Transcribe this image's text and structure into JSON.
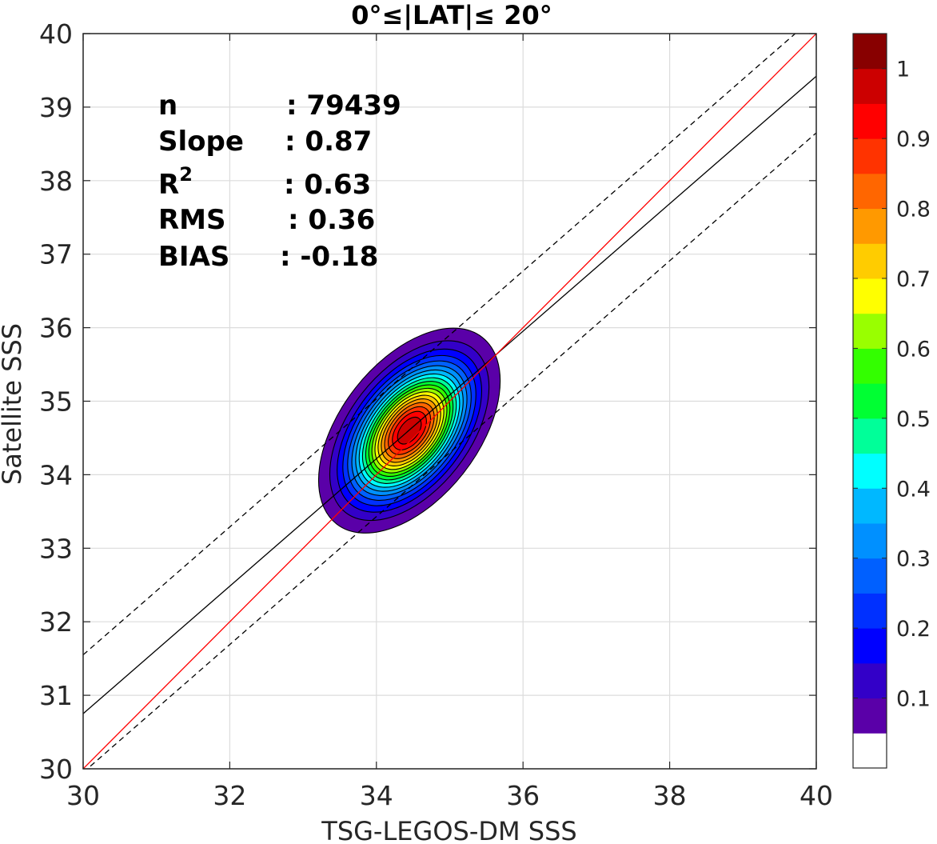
{
  "chart_data": {
    "type": "contour-scatter-density",
    "title": "0°≤|LAT|≤ 20°",
    "xlabel": "TSG-LEGOS-DM SSS",
    "ylabel": "Satellite SSS",
    "xlim": [
      30,
      40
    ],
    "ylim": [
      30,
      40
    ],
    "xticks": [
      "30",
      "32",
      "34",
      "36",
      "38",
      "40"
    ],
    "yticks": [
      "30",
      "31",
      "32",
      "33",
      "34",
      "35",
      "36",
      "37",
      "38",
      "39",
      "40"
    ],
    "grid": true,
    "stats": {
      "n": {
        "label": "n",
        "value": ": 79439"
      },
      "slope": {
        "label": "Slope",
        "value": ": 0.87"
      },
      "r2": {
        "label": "R",
        "sup": "2",
        "value": ": 0.63"
      },
      "rms": {
        "label": "RMS",
        "value": ": 0.36"
      },
      "bias": {
        "label": "BIAS",
        "value": ": -0.18"
      }
    },
    "lines": {
      "identity": {
        "x": [
          30,
          40
        ],
        "y": [
          30,
          40
        ],
        "color": "#ff0000"
      },
      "fit": {
        "x": [
          30,
          40
        ],
        "y": [
          30.75,
          39.42
        ],
        "color": "#000000"
      },
      "fit_upper": {
        "x": [
          30,
          40
        ],
        "y": [
          31.55,
          40.25
        ],
        "color": "#000000",
        "style": "dashed"
      },
      "fit_lower": {
        "x": [
          30,
          40
        ],
        "y": [
          29.95,
          38.65
        ],
        "color": "#000000",
        "style": "dashed"
      }
    },
    "density": {
      "center": [
        34.45,
        34.6
      ],
      "levels": [
        0.05,
        0.1,
        0.15,
        0.2,
        0.25,
        0.3,
        0.35,
        0.4,
        0.45,
        0.5,
        0.55,
        0.6,
        0.65,
        0.7,
        0.75,
        0.8,
        0.85,
        0.9,
        0.95
      ]
    },
    "colorbar": {
      "ticks": [
        "0.1",
        "0.2",
        "0.3",
        "0.4",
        "0.5",
        "0.6",
        "0.7",
        "0.8",
        "0.9",
        "1"
      ],
      "colors": [
        "#ffffff",
        "#5a00a8",
        "#3300c8",
        "#0000ff",
        "#0030ff",
        "#0060ff",
        "#0090ff",
        "#00b8ff",
        "#00ffff",
        "#00ff99",
        "#00ff33",
        "#33ff00",
        "#99ff00",
        "#ffff00",
        "#ffcc00",
        "#ff9900",
        "#ff6600",
        "#ff3300",
        "#ff0000",
        "#cc0000",
        "#880000"
      ]
    }
  }
}
